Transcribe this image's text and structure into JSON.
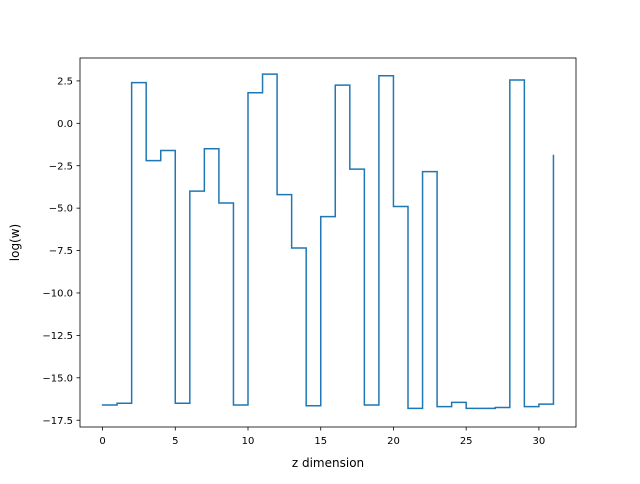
{
  "chart_data": {
    "type": "line",
    "drawstyle": "steps-post",
    "title": "",
    "xlabel": "z dimension",
    "ylabel": "log(w)",
    "xlim": [
      -1.55,
      32.55
    ],
    "ylim": [
      -17.9,
      3.85
    ],
    "xticks": [
      0,
      5,
      10,
      15,
      20,
      25,
      30
    ],
    "xtick_labels": [
      "0",
      "5",
      "10",
      "15",
      "20",
      "25",
      "30"
    ],
    "yticks": [
      -17.5,
      -15.0,
      -12.5,
      -10.0,
      -7.5,
      -5.0,
      -2.5,
      0.0,
      2.5
    ],
    "ytick_labels": [
      "−17.5",
      "−15.0",
      "−12.5",
      "−10.0",
      "−7.5",
      "−5.0",
      "−2.5",
      "0.0",
      "2.5"
    ],
    "grid": false,
    "legend": "none",
    "line_color": "#1f77b4",
    "series": [
      {
        "x": [
          0,
          1,
          2,
          3,
          4,
          5,
          6,
          7,
          8,
          9,
          10,
          11,
          12,
          13,
          14,
          15,
          16,
          17,
          18,
          19,
          20,
          21,
          22,
          23,
          24,
          25,
          26,
          27,
          28,
          29,
          30,
          31
        ],
        "values": [
          -16.6,
          -16.5,
          2.4,
          -2.2,
          -1.6,
          -16.5,
          -4.0,
          -1.5,
          -4.7,
          -16.6,
          1.8,
          2.9,
          -4.2,
          -7.35,
          -16.65,
          -5.5,
          2.25,
          -2.7,
          -16.6,
          2.8,
          -4.9,
          -16.8,
          -2.85,
          -16.7,
          -16.45,
          -16.8,
          -16.8,
          -16.75,
          2.55,
          -16.7,
          -16.55,
          -1.9
        ]
      }
    ]
  }
}
